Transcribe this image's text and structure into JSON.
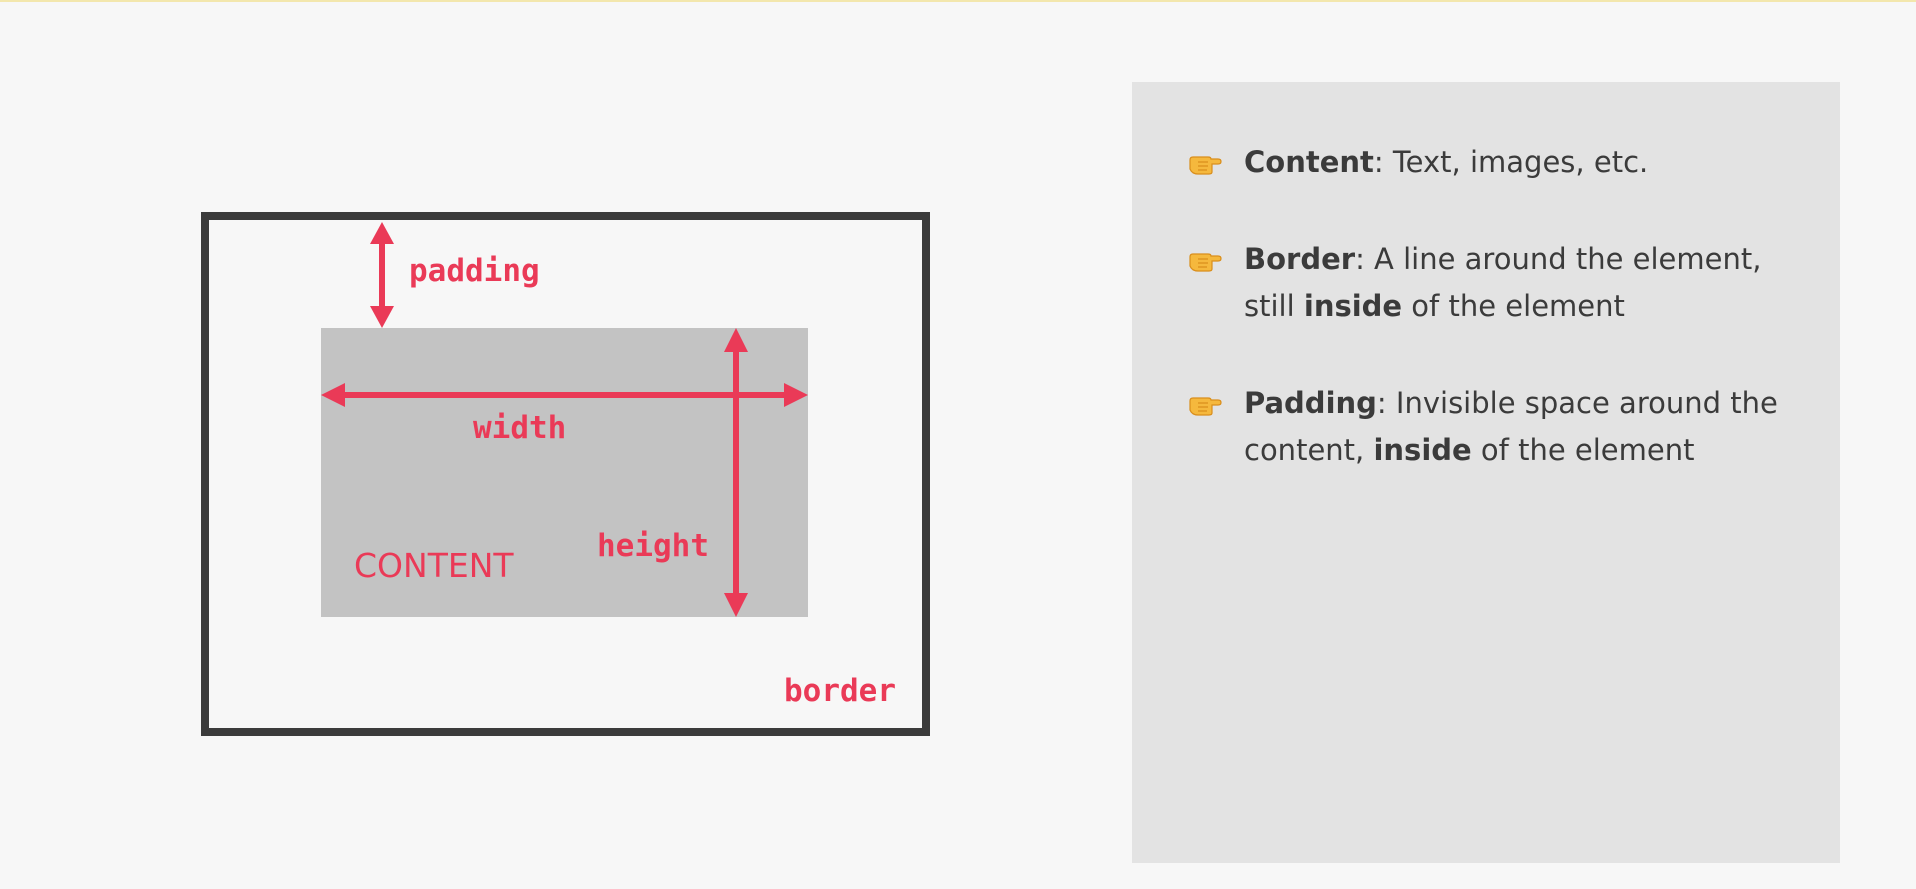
{
  "diagram": {
    "labels": {
      "padding": "padding",
      "width": "width",
      "height": "height",
      "content": "CONTENT",
      "border": "border"
    },
    "colors": {
      "accent": "#ea3a57",
      "border": "#3b3b3b",
      "content_fill": "#c3c3c3",
      "background": "#f7f7f7"
    }
  },
  "panel": {
    "bullet_icon": "pointing-hand-icon",
    "items": [
      {
        "term": "Content",
        "text_before": ": Text, images, etc.",
        "bold": "",
        "text_after": ""
      },
      {
        "term": "Border",
        "text_before": ": A line around the element, still ",
        "bold": "inside",
        "text_after": " of the element"
      },
      {
        "term": "Padding",
        "text_before": ": Invisible space around the content, ",
        "bold": "inside",
        "text_after": " of the element"
      }
    ]
  }
}
